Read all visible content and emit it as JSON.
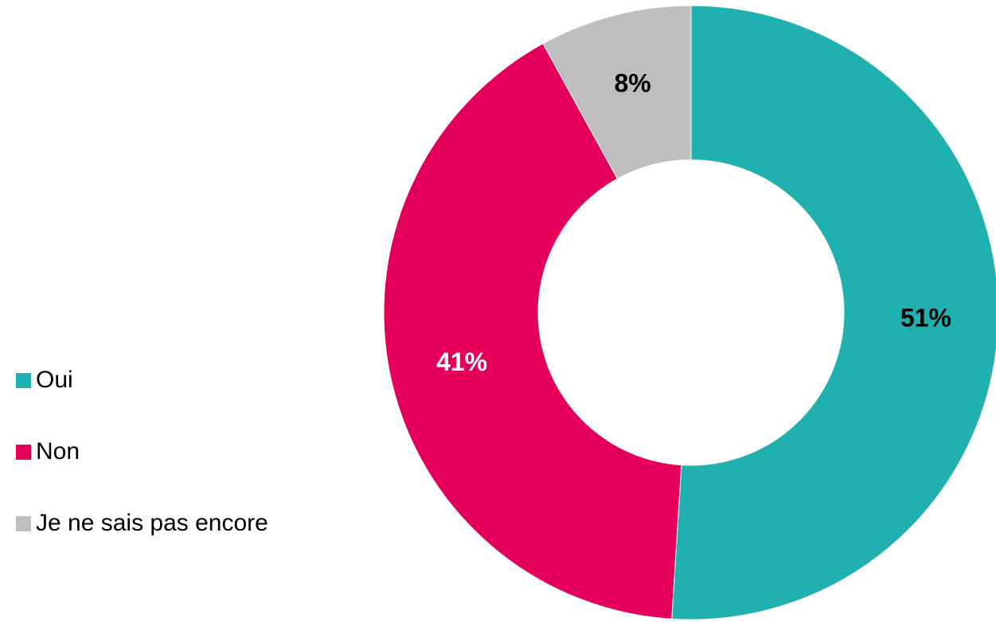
{
  "chart_data": {
    "type": "pie",
    "variant": "donut",
    "categories": [
      "Oui",
      "Non",
      "Je ne sais pas encore"
    ],
    "values": [
      51,
      41,
      8
    ],
    "unit": "%",
    "data_labels": [
      "51%",
      "41%",
      "8%"
    ],
    "colors": [
      "#20B0B0",
      "#E4005A",
      "#BEBEBE"
    ],
    "label_colors": [
      "#000000",
      "#FFFFFF",
      "#000000"
    ],
    "start_angle": "12 o'clock",
    "direction": "clockwise",
    "legend": {
      "position": "left",
      "items": [
        {
          "label": "Oui",
          "color": "#20B0B0"
        },
        {
          "label": "Non",
          "color": "#E4005A"
        },
        {
          "label": "Je ne sais pas encore",
          "color": "#BEBEBE"
        }
      ]
    }
  }
}
